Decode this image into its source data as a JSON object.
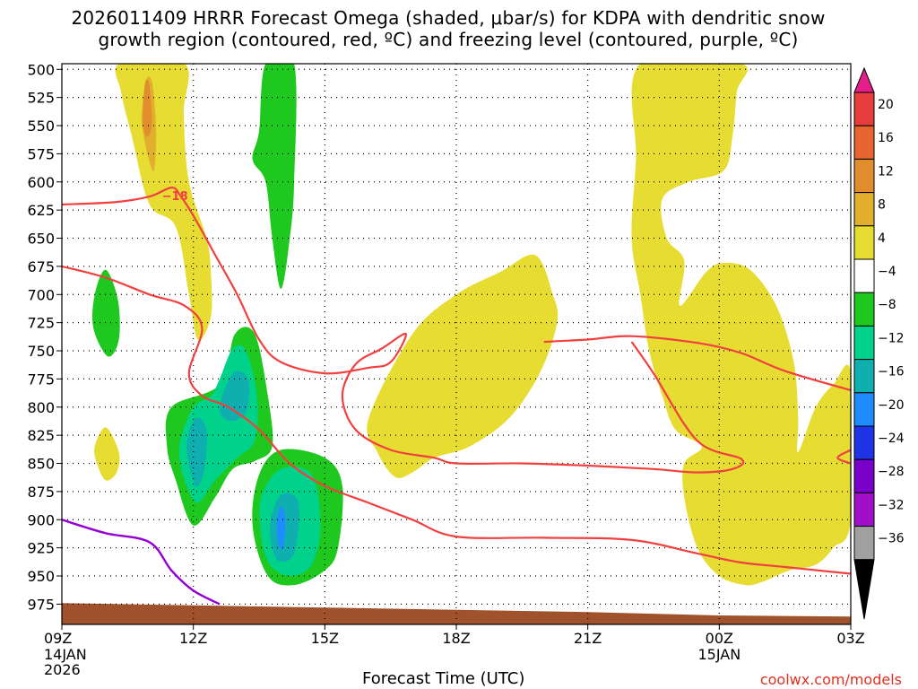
{
  "title": {
    "line1": "2026011409 HRRR Forecast Omega (shaded, μbar/s) for KDPA with dendritic snow",
    "line2": "growth region (contoured, red, ºC) and freezing level (contoured, purple, ºC)"
  },
  "credit": "coolwx.com/models",
  "colors": {
    "yellow": "#e6dc32",
    "gold": "#e1af2d",
    "orange": "#e18c2d",
    "green": "#1ec81e",
    "teal": "#00d28c",
    "cyan": "#0fafaf",
    "lightblue": "#1e8cff",
    "dgi_red": "#f04040",
    "freezing_purple": "#9400d3",
    "terrain": "#a0522d"
  },
  "chart_data": {
    "type": "contour",
    "xlabel": "Forecast Time (UTC)",
    "x_ticks": [
      {
        "label": "09Z",
        "hour": 0,
        "sub": [
          "14JAN",
          "2026"
        ]
      },
      {
        "label": "12Z",
        "hour": 3,
        "sub": []
      },
      {
        "label": "15Z",
        "hour": 6,
        "sub": []
      },
      {
        "label": "18Z",
        "hour": 9,
        "sub": []
      },
      {
        "label": "21Z",
        "hour": 12,
        "sub": []
      },
      {
        "label": "00Z",
        "hour": 15,
        "sub": [
          "15JAN"
        ]
      },
      {
        "label": "03Z",
        "hour": 18,
        "sub": []
      }
    ],
    "xlim_hours": [
      0,
      18
    ],
    "y_ticks": [
      500,
      525,
      550,
      575,
      600,
      625,
      650,
      675,
      700,
      725,
      750,
      775,
      800,
      825,
      850,
      875,
      900,
      925,
      950,
      975
    ],
    "ylim_mb": [
      495,
      993
    ],
    "grid": "dotted",
    "colorbar": {
      "labels": [
        "20",
        "16",
        "12",
        "8",
        "4",
        "−4",
        "−8",
        "−12",
        "−16",
        "−20",
        "−24",
        "−28",
        "−32",
        "−36"
      ],
      "levels": [
        20,
        16,
        12,
        8,
        4,
        -4,
        -8,
        -12,
        -16,
        -20,
        -24,
        -28,
        -32,
        -36
      ],
      "bands": [
        "#e63c3c",
        "#e6642d",
        "#e18c2d",
        "#e1af2d",
        "#e6dc32",
        "#ffffff",
        "#1ec81e",
        "#00d28c",
        "#0fafaf",
        "#1e8cff",
        "#1e32e6",
        "#7800c8",
        "#a00fc8",
        "#a0a0a0"
      ],
      "top_arrow": "#e61e8c",
      "bottom_arrow": "#000000"
    },
    "contour_label": "−18",
    "omega_regions": [
      {
        "value": 4,
        "color": "yellow",
        "points": [
          [
            1.33,
            495
          ],
          [
            2.8,
            495
          ],
          [
            2.78,
            540
          ],
          [
            2.9,
            600
          ],
          [
            3.3,
            650
          ],
          [
            3.4,
            680
          ],
          [
            3.4,
            720
          ],
          [
            3.1,
            740
          ],
          [
            2.9,
            700
          ],
          [
            2.6,
            640
          ],
          [
            2.0,
            620
          ],
          [
            1.6,
            560
          ],
          [
            1.35,
            520
          ]
        ]
      },
      {
        "value": 8,
        "color": "gold",
        "points": [
          [
            1.82,
            540
          ],
          [
            1.92,
            510
          ],
          [
            2.06,
            512
          ],
          [
            2.15,
            555
          ],
          [
            2.1,
            590
          ],
          [
            1.95,
            575
          ],
          [
            1.85,
            555
          ]
        ]
      },
      {
        "value": 12,
        "color": "orange",
        "points": [
          [
            1.85,
            545
          ],
          [
            1.9,
            512
          ],
          [
            2.0,
            515
          ],
          [
            2.05,
            550
          ],
          [
            1.93,
            560
          ]
        ]
      },
      {
        "value": -4,
        "color": "green",
        "points": [
          [
            4.65,
            495
          ],
          [
            5.3,
            495
          ],
          [
            5.3,
            600
          ],
          [
            5.2,
            650
          ],
          [
            5.0,
            695
          ],
          [
            4.8,
            650
          ],
          [
            4.65,
            600
          ],
          [
            4.35,
            580
          ],
          [
            4.5,
            555
          ]
        ]
      },
      {
        "value": -4,
        "color": "green",
        "points": [
          [
            0.75,
            700
          ],
          [
            1.0,
            678
          ],
          [
            1.28,
            705
          ],
          [
            1.3,
            740
          ],
          [
            1.05,
            755
          ],
          [
            0.72,
            730
          ]
        ]
      },
      {
        "value": 4,
        "color": "yellow",
        "points": [
          [
            0.75,
            835
          ],
          [
            1.0,
            818
          ],
          [
            1.3,
            840
          ],
          [
            1.25,
            858
          ],
          [
            1.0,
            865
          ],
          [
            0.8,
            850
          ]
        ]
      },
      {
        "value": -4,
        "color": "green",
        "points": [
          [
            2.5,
            800
          ],
          [
            3.6,
            780
          ],
          [
            3.95,
            735
          ],
          [
            4.4,
            735
          ],
          [
            4.7,
            790
          ],
          [
            4.8,
            835
          ],
          [
            4.4,
            848
          ],
          [
            3.9,
            855
          ],
          [
            3.5,
            880
          ],
          [
            3.0,
            905
          ],
          [
            2.6,
            865
          ],
          [
            2.4,
            835
          ]
        ]
      },
      {
        "value": -4,
        "color": "green",
        "points": [
          [
            4.5,
            860
          ],
          [
            5.0,
            838
          ],
          [
            6.0,
            845
          ],
          [
            6.4,
            870
          ],
          [
            6.3,
            925
          ],
          [
            6.0,
            945
          ],
          [
            5.3,
            958
          ],
          [
            4.7,
            950
          ],
          [
            4.35,
            905
          ]
        ]
      },
      {
        "value": -8,
        "color": "teal",
        "points": [
          [
            2.7,
            830
          ],
          [
            3.0,
            800
          ],
          [
            3.4,
            790
          ],
          [
            3.6,
            775
          ],
          [
            3.9,
            748
          ],
          [
            4.2,
            750
          ],
          [
            4.45,
            790
          ],
          [
            4.4,
            830
          ],
          [
            4.0,
            845
          ],
          [
            3.5,
            865
          ],
          [
            3.1,
            885
          ],
          [
            2.85,
            870
          ],
          [
            2.7,
            850
          ]
        ]
      },
      {
        "value": -8,
        "color": "teal",
        "points": [
          [
            4.55,
            880
          ],
          [
            5.0,
            855
          ],
          [
            5.7,
            860
          ],
          [
            5.9,
            905
          ],
          [
            5.7,
            940
          ],
          [
            5.2,
            950
          ],
          [
            4.75,
            940
          ],
          [
            4.55,
            915
          ]
        ]
      },
      {
        "value": -12,
        "color": "cyan",
        "points": [
          [
            2.85,
            835
          ],
          [
            3.05,
            810
          ],
          [
            3.3,
            820
          ],
          [
            3.25,
            855
          ],
          [
            3.05,
            870
          ]
        ]
      },
      {
        "value": -12,
        "color": "cyan",
        "points": [
          [
            3.6,
            800
          ],
          [
            3.9,
            770
          ],
          [
            4.25,
            775
          ],
          [
            4.2,
            805
          ],
          [
            3.8,
            812
          ]
        ]
      },
      {
        "value": -12,
        "color": "cyan",
        "points": [
          [
            4.75,
            905
          ],
          [
            5.0,
            878
          ],
          [
            5.4,
            885
          ],
          [
            5.3,
            930
          ],
          [
            4.9,
            935
          ]
        ]
      },
      {
        "value": -16,
        "color": "lightblue",
        "points": [
          [
            4.9,
            905
          ],
          [
            5.0,
            888
          ],
          [
            5.1,
            900
          ],
          [
            5.05,
            925
          ],
          [
            4.95,
            922
          ]
        ]
      },
      {
        "value": 4,
        "color": "yellow",
        "points": [
          [
            7.0,
            810
          ],
          [
            8.0,
            735
          ],
          [
            9.0,
            700
          ],
          [
            10.0,
            680
          ],
          [
            10.8,
            665
          ],
          [
            11.2,
            700
          ],
          [
            11.3,
            725
          ],
          [
            10.9,
            770
          ],
          [
            10.2,
            810
          ],
          [
            9.3,
            835
          ],
          [
            8.5,
            845
          ],
          [
            8.0,
            858
          ],
          [
            7.6,
            862
          ],
          [
            7.2,
            840
          ]
        ]
      },
      {
        "value": 4,
        "color": "yellow",
        "points": [
          [
            13.2,
            495
          ],
          [
            15.5,
            495
          ],
          [
            15.4,
            520
          ],
          [
            15.3,
            560
          ],
          [
            15.1,
            590
          ],
          [
            14.3,
            600
          ],
          [
            13.7,
            615
          ],
          [
            13.8,
            650
          ],
          [
            14.2,
            670
          ],
          [
            14.1,
            710
          ],
          [
            14.7,
            680
          ],
          [
            15.1,
            672
          ],
          [
            15.7,
            678
          ],
          [
            16.3,
            710
          ],
          [
            16.7,
            760
          ],
          [
            16.8,
            810
          ],
          [
            16.8,
            840
          ],
          [
            17.2,
            800
          ],
          [
            17.6,
            780
          ],
          [
            18.0,
            770
          ],
          [
            18.0,
            900
          ],
          [
            17.6,
            925
          ],
          [
            17.2,
            940
          ],
          [
            16.6,
            945
          ],
          [
            16.0,
            955
          ],
          [
            15.6,
            958
          ],
          [
            15.0,
            950
          ],
          [
            14.5,
            925
          ],
          [
            14.2,
            880
          ],
          [
            14.2,
            850
          ],
          [
            14.6,
            835
          ],
          [
            14.0,
            820
          ],
          [
            13.7,
            790
          ],
          [
            13.4,
            750
          ],
          [
            13.2,
            700
          ],
          [
            13.0,
            650
          ],
          [
            13.1,
            580
          ]
        ]
      }
    ],
    "dgi_lines": [
      {
        "points": [
          [
            0,
            620
          ],
          [
            1.2,
            618
          ],
          [
            2.0,
            613
          ],
          [
            2.5,
            605
          ],
          [
            2.7,
            612
          ],
          [
            3.0,
            630
          ],
          [
            3.5,
            665
          ],
          [
            4.0,
            700
          ],
          [
            4.5,
            740
          ],
          [
            5.0,
            760
          ],
          [
            6.0,
            770
          ],
          [
            7.0,
            765
          ],
          [
            7.5,
            760
          ],
          [
            7.85,
            735
          ],
          [
            7.3,
            748
          ],
          [
            6.7,
            762
          ],
          [
            6.4,
            790
          ],
          [
            6.7,
            820
          ],
          [
            7.5,
            838
          ],
          [
            8.5,
            845
          ],
          [
            9.0,
            850
          ],
          [
            10.5,
            850
          ],
          [
            12.0,
            852
          ],
          [
            13.5,
            855
          ],
          [
            14.5,
            858
          ],
          [
            15.3,
            855
          ],
          [
            15.5,
            846
          ],
          [
            14.5,
            830
          ],
          [
            13.5,
            770
          ],
          [
            13.0,
            742
          ]
        ]
      },
      {
        "points": [
          [
            0,
            675
          ],
          [
            1.0,
            685
          ],
          [
            2.0,
            700
          ],
          [
            2.8,
            710
          ],
          [
            3.2,
            730
          ],
          [
            2.9,
            770
          ],
          [
            3.2,
            790
          ],
          [
            3.8,
            800
          ],
          [
            4.5,
            820
          ],
          [
            5.2,
            850
          ],
          [
            6.0,
            870
          ],
          [
            7.0,
            885
          ],
          [
            8.0,
            900
          ],
          [
            9.0,
            915
          ],
          [
            11.0,
            916
          ],
          [
            13.0,
            918
          ],
          [
            14.5,
            930
          ],
          [
            15.5,
            938
          ],
          [
            16.5,
            942
          ],
          [
            18.0,
            948
          ]
        ]
      },
      {
        "points": [
          [
            11.0,
            742
          ],
          [
            12.0,
            740
          ],
          [
            13.0,
            737
          ],
          [
            14.5,
            743
          ],
          [
            15.5,
            752
          ],
          [
            16.5,
            768
          ],
          [
            18.0,
            785
          ]
        ]
      },
      {
        "points": [
          [
            18.0,
            838
          ],
          [
            17.7,
            845
          ],
          [
            18.0,
            850
          ]
        ]
      }
    ],
    "freezing_line": {
      "points": [
        [
          0,
          900
        ],
        [
          1.0,
          912
        ],
        [
          2.0,
          920
        ],
        [
          2.5,
          945
        ],
        [
          3.0,
          963
        ],
        [
          3.6,
          975
        ]
      ]
    },
    "terrain_surface_mb": [
      [
        0,
        974
      ],
      [
        3.0,
        976
      ],
      [
        6.0,
        978
      ],
      [
        9.0,
        980
      ],
      [
        12.0,
        982
      ],
      [
        15.0,
        985
      ],
      [
        18.0,
        986
      ]
    ]
  }
}
